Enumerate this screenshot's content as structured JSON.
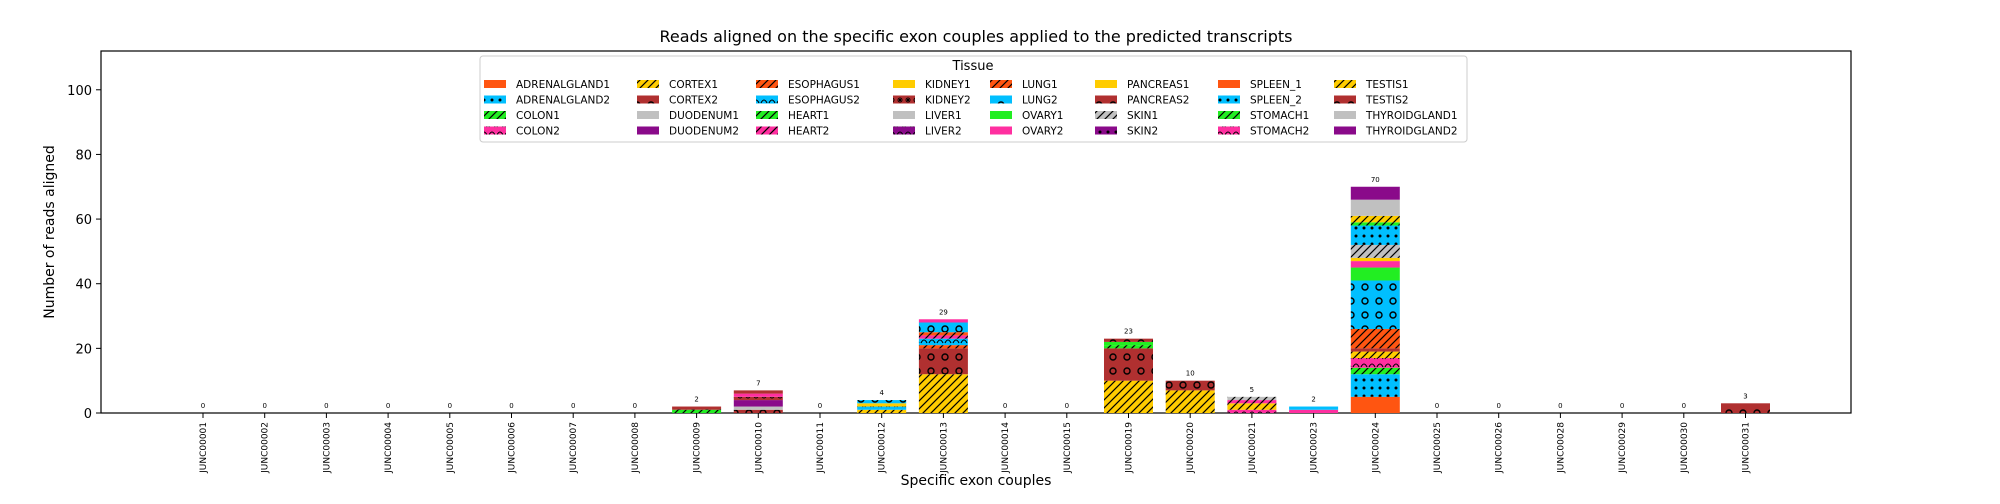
{
  "chart_data": {
    "type": "bar",
    "stacked": true,
    "title": "Reads aligned on the specific exon couples applied to the predicted transcripts",
    "xlabel": "Specific exon couples",
    "ylabel": "Number of reads aligned",
    "ylim": [
      0,
      112
    ],
    "yticks": [
      0,
      20,
      40,
      60,
      80,
      100
    ],
    "grid": false,
    "legend_title": "Tissue",
    "legend_placement": "top-center",
    "categories": [
      "JUNC00001",
      "JUNC00002",
      "JUNC00003",
      "JUNC00004",
      "JUNC00005",
      "JUNC00006",
      "JUNC00007",
      "JUNC00008",
      "JUNC00009",
      "JUNC00010",
      "JUNC00011",
      "JUNC00012",
      "JUNC00013",
      "JUNC00014",
      "JUNC00015",
      "JUNC00019",
      "JUNC00020",
      "JUNC00021",
      "JUNC00023",
      "JUNC00024",
      "JUNC00025",
      "JUNC00026",
      "JUNC00028",
      "JUNC00029",
      "JUNC00030",
      "JUNC00031"
    ],
    "totals": [
      0,
      0,
      0,
      0,
      0,
      0,
      0,
      0,
      2,
      7,
      0,
      4,
      29,
      0,
      0,
      23,
      10,
      5,
      2,
      70,
      0,
      0,
      0,
      0,
      0,
      3
    ],
    "series": [
      {
        "name": "ADRENALGLAND1",
        "color": "#ff5511",
        "pattern": "none",
        "values": [
          0,
          0,
          0,
          0,
          0,
          0,
          0,
          0,
          0,
          0,
          0,
          0,
          0,
          0,
          0,
          0,
          0,
          0,
          0,
          5,
          0,
          0,
          0,
          0,
          0,
          0
        ]
      },
      {
        "name": "ADRENALGLAND2",
        "color": "#00bfff",
        "pattern": "dots",
        "values": [
          0,
          0,
          0,
          0,
          0,
          0,
          0,
          0,
          0,
          0,
          0,
          0,
          0,
          0,
          0,
          0,
          0,
          0,
          0,
          7,
          0,
          0,
          0,
          0,
          0,
          0
        ]
      },
      {
        "name": "COLON1",
        "color": "#22ee22",
        "pattern": "slash",
        "values": [
          0,
          0,
          0,
          0,
          0,
          0,
          0,
          0,
          1,
          0,
          0,
          0,
          0,
          0,
          0,
          0,
          0,
          0,
          0,
          2,
          0,
          0,
          0,
          0,
          0,
          0
        ]
      },
      {
        "name": "COLON2",
        "color": "#ff2fa0",
        "pattern": "arc",
        "values": [
          0,
          0,
          0,
          0,
          0,
          0,
          0,
          0,
          0,
          0,
          0,
          0,
          0,
          0,
          0,
          0,
          0,
          1,
          0,
          3,
          0,
          0,
          0,
          0,
          0,
          0
        ]
      },
      {
        "name": "CORTEX1",
        "color": "#ffcc00",
        "pattern": "slash",
        "values": [
          0,
          0,
          0,
          0,
          0,
          0,
          0,
          0,
          0,
          0,
          0,
          1,
          12,
          0,
          0,
          10,
          7,
          2,
          0,
          2,
          0,
          0,
          0,
          0,
          0,
          0
        ]
      },
      {
        "name": "CORTEX2",
        "color": "#b03030",
        "pattern": "circles",
        "values": [
          0,
          0,
          0,
          0,
          0,
          0,
          0,
          0,
          1,
          1,
          0,
          0,
          8,
          0,
          0,
          10,
          3,
          0,
          0,
          1,
          0,
          0,
          0,
          0,
          0,
          3
        ]
      },
      {
        "name": "DUODENUM1",
        "color": "#c0c0c0",
        "pattern": "none",
        "values": [
          0,
          0,
          0,
          0,
          0,
          0,
          0,
          0,
          0,
          1,
          0,
          0,
          0,
          0,
          0,
          0,
          0,
          0,
          0,
          0,
          0,
          0,
          0,
          0,
          0,
          0
        ]
      },
      {
        "name": "DUODENUM2",
        "color": "#8a0a8a",
        "pattern": "none",
        "values": [
          0,
          0,
          0,
          0,
          0,
          0,
          0,
          0,
          0,
          2,
          0,
          0,
          0,
          0,
          0,
          0,
          0,
          0,
          0,
          0,
          0,
          0,
          0,
          0,
          0,
          0
        ]
      },
      {
        "name": "ESOPHAGUS1",
        "color": "#ff5511",
        "pattern": "slash",
        "values": [
          0,
          0,
          0,
          0,
          0,
          0,
          0,
          0,
          0,
          0,
          0,
          0,
          1,
          0,
          0,
          0,
          0,
          0,
          0,
          6,
          0,
          0,
          0,
          0,
          0,
          0
        ]
      },
      {
        "name": "ESOPHAGUS2",
        "color": "#00bfff",
        "pattern": "arc",
        "values": [
          0,
          0,
          0,
          0,
          0,
          0,
          0,
          0,
          0,
          0,
          0,
          1,
          2,
          0,
          0,
          0,
          0,
          0,
          0,
          0,
          0,
          0,
          0,
          0,
          0,
          0
        ]
      },
      {
        "name": "HEART1",
        "color": "#22ee22",
        "pattern": "slash",
        "values": [
          0,
          0,
          0,
          0,
          0,
          0,
          0,
          0,
          0,
          0,
          0,
          0,
          0,
          0,
          0,
          1,
          0,
          0,
          0,
          0,
          0,
          0,
          0,
          0,
          0,
          0
        ]
      },
      {
        "name": "HEART2",
        "color": "#ff2fa0",
        "pattern": "slash",
        "values": [
          0,
          0,
          0,
          0,
          0,
          0,
          0,
          0,
          0,
          0,
          0,
          0,
          1,
          0,
          0,
          0,
          0,
          1,
          0,
          0,
          0,
          0,
          0,
          0,
          0,
          0
        ]
      },
      {
        "name": "KIDNEY1",
        "color": "#ffcc00",
        "pattern": "none",
        "values": [
          0,
          0,
          0,
          0,
          0,
          0,
          0,
          0,
          0,
          0,
          0,
          1,
          0,
          0,
          0,
          0,
          0,
          0,
          0,
          0,
          0,
          0,
          0,
          0,
          0,
          0
        ]
      },
      {
        "name": "KIDNEY2",
        "color": "#b03030",
        "pattern": "stars",
        "values": [
          0,
          0,
          0,
          0,
          0,
          0,
          0,
          0,
          0,
          1,
          0,
          0,
          0,
          0,
          0,
          0,
          0,
          0,
          0,
          0,
          0,
          0,
          0,
          0,
          0,
          0
        ]
      },
      {
        "name": "LIVER1",
        "color": "#c0c0c0",
        "pattern": "none",
        "values": [
          0,
          0,
          0,
          0,
          0,
          0,
          0,
          0,
          0,
          0,
          0,
          0,
          0,
          0,
          0,
          0,
          0,
          0,
          0,
          0,
          0,
          0,
          0,
          0,
          0,
          0
        ]
      },
      {
        "name": "LIVER2",
        "color": "#8a0a8a",
        "pattern": "arc",
        "values": [
          0,
          0,
          0,
          0,
          0,
          0,
          0,
          0,
          0,
          0,
          0,
          0,
          0,
          0,
          0,
          0,
          0,
          0,
          0,
          0,
          0,
          0,
          0,
          0,
          0,
          0
        ]
      },
      {
        "name": "LUNG1",
        "color": "#ff5511",
        "pattern": "slash",
        "values": [
          0,
          0,
          0,
          0,
          0,
          0,
          0,
          0,
          0,
          0,
          0,
          0,
          1,
          0,
          0,
          0,
          0,
          0,
          0,
          0,
          0,
          0,
          0,
          0,
          0,
          0
        ]
      },
      {
        "name": "LUNG2",
        "color": "#00bfff",
        "pattern": "circles",
        "values": [
          0,
          0,
          0,
          0,
          0,
          0,
          0,
          0,
          0,
          0,
          0,
          1,
          3,
          0,
          0,
          0,
          0,
          0,
          0,
          15,
          0,
          0,
          0,
          0,
          0,
          0
        ]
      },
      {
        "name": "OVARY1",
        "color": "#22ee22",
        "pattern": "none",
        "values": [
          0,
          0,
          0,
          0,
          0,
          0,
          0,
          0,
          0,
          0,
          0,
          0,
          0,
          0,
          0,
          1,
          0,
          0,
          0,
          4,
          0,
          0,
          0,
          0,
          0,
          0
        ]
      },
      {
        "name": "OVARY2",
        "color": "#ff2fa0",
        "pattern": "none",
        "values": [
          0,
          0,
          0,
          0,
          0,
          0,
          0,
          0,
          0,
          1,
          0,
          0,
          1,
          0,
          0,
          0,
          0,
          0,
          1,
          2,
          0,
          0,
          0,
          0,
          0,
          0
        ]
      },
      {
        "name": "PANCREAS1",
        "color": "#ffcc00",
        "pattern": "none",
        "values": [
          0,
          0,
          0,
          0,
          0,
          0,
          0,
          0,
          0,
          0,
          0,
          0,
          0,
          0,
          0,
          0,
          0,
          0,
          0,
          1,
          0,
          0,
          0,
          0,
          0,
          0
        ]
      },
      {
        "name": "PANCREAS2",
        "color": "#b03030",
        "pattern": "circles",
        "values": [
          0,
          0,
          0,
          0,
          0,
          0,
          0,
          0,
          0,
          1,
          0,
          0,
          0,
          0,
          0,
          1,
          0,
          0,
          0,
          0,
          0,
          0,
          0,
          0,
          0,
          0
        ]
      },
      {
        "name": "SKIN1",
        "color": "#c0c0c0",
        "pattern": "slash",
        "values": [
          0,
          0,
          0,
          0,
          0,
          0,
          0,
          0,
          0,
          0,
          0,
          0,
          0,
          0,
          0,
          0,
          0,
          1,
          0,
          4,
          0,
          0,
          0,
          0,
          0,
          0
        ]
      },
      {
        "name": "SKIN2",
        "color": "#8a0a8a",
        "pattern": "dots",
        "values": [
          0,
          0,
          0,
          0,
          0,
          0,
          0,
          0,
          0,
          0,
          0,
          0,
          0,
          0,
          0,
          0,
          0,
          0,
          0,
          0,
          0,
          0,
          0,
          0,
          0,
          0
        ]
      },
      {
        "name": "SPLEEN_1",
        "color": "#ff5511",
        "pattern": "none",
        "values": [
          0,
          0,
          0,
          0,
          0,
          0,
          0,
          0,
          0,
          0,
          0,
          0,
          0,
          0,
          0,
          0,
          0,
          0,
          0,
          0,
          0,
          0,
          0,
          0,
          0,
          0
        ]
      },
      {
        "name": "SPLEEN_2",
        "color": "#00bfff",
        "pattern": "dots",
        "values": [
          0,
          0,
          0,
          0,
          0,
          0,
          0,
          0,
          0,
          0,
          0,
          0,
          0,
          0,
          0,
          0,
          0,
          0,
          1,
          6,
          0,
          0,
          0,
          0,
          0,
          0
        ]
      },
      {
        "name": "STOMACH1",
        "color": "#22ee22",
        "pattern": "slash",
        "values": [
          0,
          0,
          0,
          0,
          0,
          0,
          0,
          0,
          0,
          0,
          0,
          0,
          0,
          0,
          0,
          0,
          0,
          0,
          0,
          1,
          0,
          0,
          0,
          0,
          0,
          0
        ]
      },
      {
        "name": "STOMACH2",
        "color": "#ff2fa0",
        "pattern": "arc",
        "values": [
          0,
          0,
          0,
          0,
          0,
          0,
          0,
          0,
          0,
          0,
          0,
          0,
          0,
          0,
          0,
          0,
          0,
          0,
          0,
          0,
          0,
          0,
          0,
          0,
          0,
          0
        ]
      },
      {
        "name": "TESTIS1",
        "color": "#ffcc00",
        "pattern": "slash",
        "values": [
          0,
          0,
          0,
          0,
          0,
          0,
          0,
          0,
          0,
          0,
          0,
          0,
          0,
          0,
          0,
          0,
          0,
          0,
          0,
          2,
          0,
          0,
          0,
          0,
          0,
          0
        ]
      },
      {
        "name": "TESTIS2",
        "color": "#b03030",
        "pattern": "circles",
        "values": [
          0,
          0,
          0,
          0,
          0,
          0,
          0,
          0,
          0,
          0,
          0,
          0,
          0,
          0,
          0,
          0,
          0,
          0,
          0,
          0,
          0,
          0,
          0,
          0,
          0,
          0
        ]
      },
      {
        "name": "THYROIDGLAND1",
        "color": "#c0c0c0",
        "pattern": "none",
        "values": [
          0,
          0,
          0,
          0,
          0,
          0,
          0,
          0,
          0,
          0,
          0,
          0,
          0,
          0,
          0,
          0,
          0,
          0,
          0,
          5,
          0,
          0,
          0,
          0,
          0,
          0
        ]
      },
      {
        "name": "THYROIDGLAND2",
        "color": "#8a0a8a",
        "pattern": "none",
        "values": [
          0,
          0,
          0,
          0,
          0,
          0,
          0,
          0,
          0,
          0,
          0,
          0,
          0,
          0,
          0,
          0,
          0,
          0,
          0,
          4,
          0,
          0,
          0,
          0,
          0,
          0
        ]
      }
    ]
  }
}
